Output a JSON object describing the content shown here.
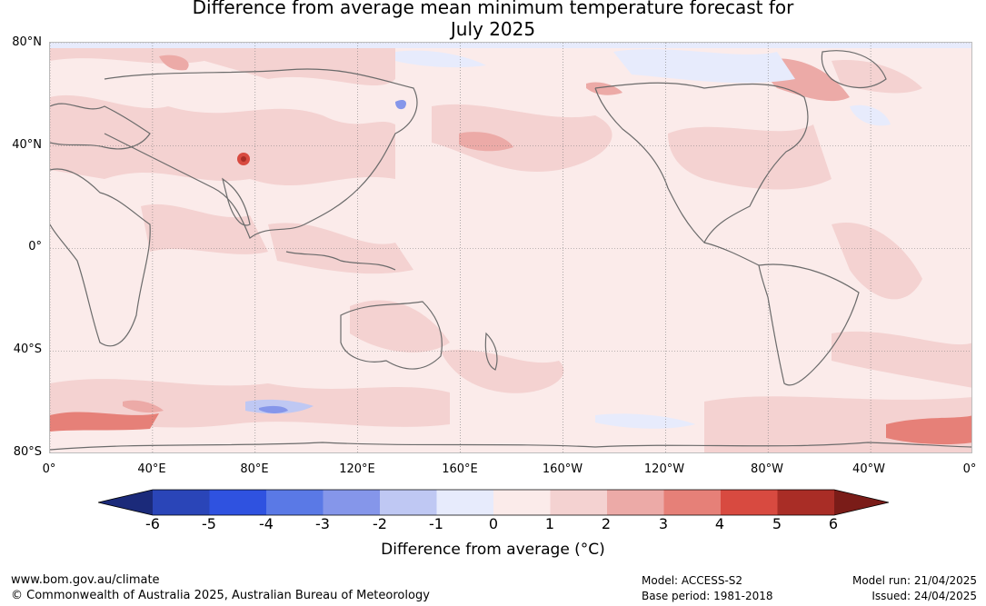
{
  "title": {
    "line1": "Difference from average mean minimum temperature forecast for",
    "line2": "July 2025"
  },
  "map": {
    "lat_labels": [
      "80°N",
      "40°N",
      "0°",
      "40°S",
      "80°S"
    ],
    "lat_values": [
      80,
      40,
      0,
      -40,
      -80
    ],
    "lon_labels": [
      "0°",
      "40°E",
      "80°E",
      "120°E",
      "160°E",
      "160°W",
      "120°W",
      "80°W",
      "40°W",
      "0°"
    ],
    "lon_values": [
      0,
      40,
      80,
      120,
      160,
      200,
      240,
      280,
      320,
      360
    ],
    "grid": true,
    "projection": "equirectangular, centred on 180°",
    "colors": {
      "background_anomaly_0_to_1": "#fbebea",
      "land_outline": "#6b6b6b"
    }
  },
  "colorbar": {
    "ticks": [
      "-6",
      "-5",
      "-4",
      "-3",
      "-2",
      "-1",
      "0",
      "1",
      "2",
      "3",
      "4",
      "5",
      "6"
    ],
    "tick_values": [
      -6,
      -5,
      -4,
      -3,
      -2,
      -1,
      0,
      1,
      2,
      3,
      4,
      5,
      6
    ],
    "colors": [
      "#1b2a7a",
      "#2a45b8",
      "#2f52e0",
      "#5a79e6",
      "#8596ea",
      "#bfc8f3",
      "#e7ebfc",
      "#fbebea",
      "#f4d2d1",
      "#ecaaa7",
      "#e68078",
      "#d84a40",
      "#a92d26",
      "#7a1c18"
    ],
    "label": "Difference from average (°C)"
  },
  "footer": {
    "website": "www.bom.gov.au/climate",
    "copyright": "© Commonwealth of Australia 2025, Australian Bureau of Meteorology",
    "model": "Model: ACCESS-S2",
    "base_period": "Base period: 1981-2018",
    "model_run": "Model run: 21/04/2025",
    "issued": "Issued: 24/04/2025"
  }
}
